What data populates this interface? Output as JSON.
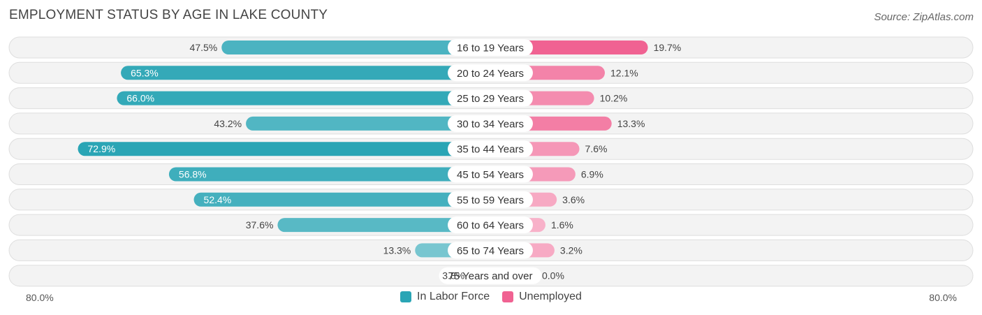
{
  "title": "EMPLOYMENT STATUS BY AGE IN LAKE COUNTY",
  "source": "Source: ZipAtlas.com",
  "chart_data": {
    "type": "bar",
    "orientation": "horizontal-diverging",
    "categories": [
      "16 to 19 Years",
      "20 to 24 Years",
      "25 to 29 Years",
      "30 to 34 Years",
      "35 to 44 Years",
      "45 to 54 Years",
      "55 to 59 Years",
      "60 to 64 Years",
      "65 to 74 Years",
      "75 Years and over"
    ],
    "series": [
      {
        "name": "In Labor Force",
        "values": [
          47.5,
          65.3,
          66.0,
          43.2,
          72.9,
          56.8,
          52.4,
          37.6,
          13.3,
          3.8
        ],
        "color": "#2aa5b5",
        "side": "left"
      },
      {
        "name": "Unemployed",
        "values": [
          19.7,
          12.1,
          10.2,
          13.3,
          7.6,
          6.9,
          3.6,
          1.6,
          3.2,
          0.0
        ],
        "color": "#f06292",
        "side": "right"
      }
    ],
    "xlim": [
      0,
      80.0
    ],
    "axis_left_label": "80.0%",
    "axis_right_label": "80.0%",
    "value_suffix": "%",
    "legend_position": "bottom-center"
  }
}
